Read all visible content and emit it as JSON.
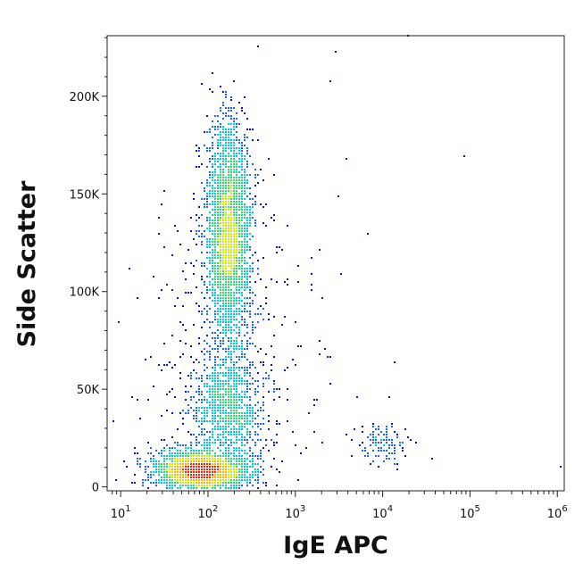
{
  "chart_data": {
    "type": "scatter",
    "title": "",
    "xlabel": "IgE APC",
    "ylabel": "Side Scatter",
    "x_scale": "log",
    "xlim": [
      7,
      1200000
    ],
    "ylim": [
      -2000,
      231000
    ],
    "x_ticks": [
      {
        "value": 10,
        "base": "10",
        "exp": "1"
      },
      {
        "value": 100,
        "base": "10",
        "exp": "2"
      },
      {
        "value": 1000,
        "base": "10",
        "exp": "3"
      },
      {
        "value": 10000,
        "base": "10",
        "exp": "4"
      },
      {
        "value": 100000,
        "base": "10",
        "exp": "5"
      },
      {
        "value": 1000000,
        "base": "10",
        "exp": "6"
      }
    ],
    "y_ticks": [
      {
        "value": 0,
        "label": "0"
      },
      {
        "value": 50000,
        "label": "50K"
      },
      {
        "value": 100000,
        "label": "100K"
      },
      {
        "value": 150000,
        "label": "150K"
      },
      {
        "value": 200000,
        "label": "200K"
      }
    ],
    "grid": false,
    "legend": "none",
    "density_colormap": [
      "#0a14c8",
      "#1e64ff",
      "#00c8e6",
      "#2ddc6e",
      "#c8f000",
      "#ffb400",
      "#ff1e00"
    ],
    "populations": [
      {
        "x_median": 85,
        "x_log_sd": 0.28,
        "y_mean": 8000,
        "y_sd": 5000,
        "y_min": -1500,
        "y_max": 30000,
        "count": 2200
      },
      {
        "x_median": 175,
        "x_log_sd": 0.13,
        "y_mean": 130000,
        "y_sd": 28000,
        "y_min": 55000,
        "y_max": 215000,
        "count": 2600
      },
      {
        "x_median": 175,
        "x_log_sd": 0.19,
        "y_mean": 40000,
        "y_sd": 14000,
        "y_min": 15000,
        "y_max": 75000,
        "count": 900
      },
      {
        "x_median": 10000,
        "x_log_sd": 0.14,
        "y_mean": 21000,
        "y_sd": 6000,
        "y_min": 8000,
        "y_max": 33000,
        "count": 110
      },
      {
        "x_median": 160,
        "x_log_sd": 0.45,
        "y_mean": 60000,
        "y_sd": 50000,
        "y_min": 0,
        "y_max": 225000,
        "count": 500
      }
    ],
    "outliers": [
      [
        3000,
        222000
      ],
      [
        4000,
        168000
      ],
      [
        3200,
        149000
      ],
      [
        7000,
        129000
      ],
      [
        3400,
        109000
      ],
      [
        14000,
        64000
      ],
      [
        38000,
        14000
      ],
      [
        90000,
        169000
      ],
      [
        1100000,
        10000
      ],
      [
        2500,
        207000
      ],
      [
        380,
        225000
      ],
      [
        1800,
        45000
      ],
      [
        5200,
        46000
      ],
      [
        12000,
        46000
      ],
      [
        3800,
        27000
      ],
      [
        4500,
        16000
      ],
      [
        600,
        27000
      ],
      [
        800,
        33000
      ],
      [
        20000,
        231000
      ],
      [
        1600,
        100000
      ]
    ]
  }
}
